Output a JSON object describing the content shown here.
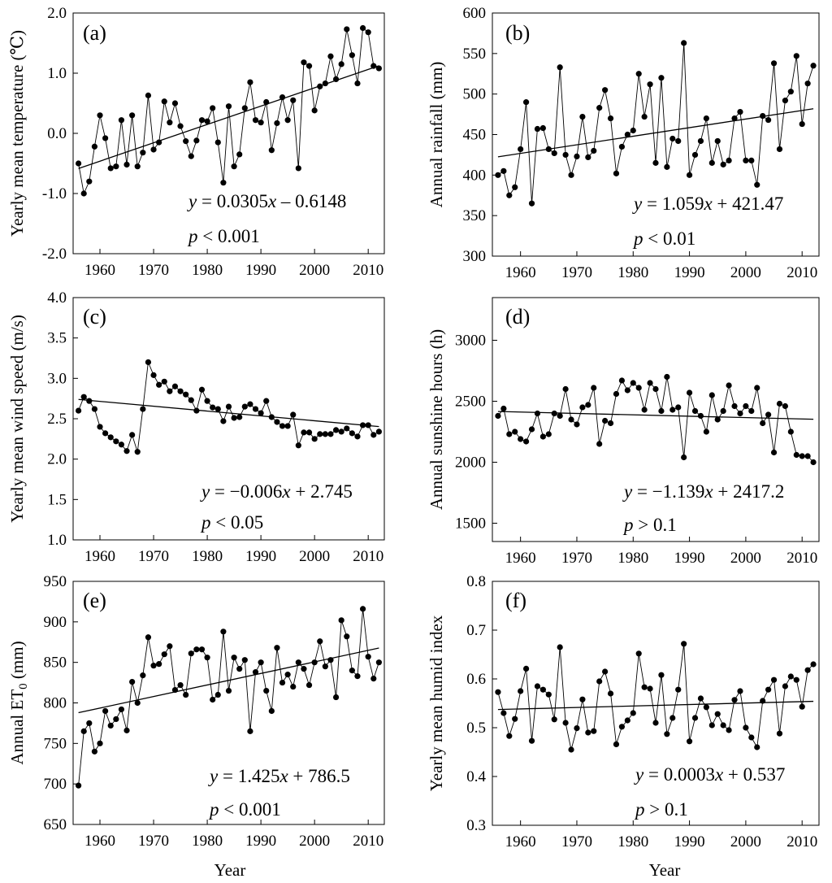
{
  "figure": {
    "xlabel": "Year"
  },
  "chart_data": [
    {
      "id": "a",
      "type": "line",
      "label": "(a)",
      "ylabel": "Yearly mean temperature (℃)",
      "xlim": [
        1955,
        2013
      ],
      "ylim": [
        -2.0,
        2.0
      ],
      "yticks": [
        "-2.0",
        "-1.0",
        "0.0",
        "1.0",
        "2.0"
      ],
      "xticks": [
        "1960",
        "1970",
        "1980",
        "1990",
        "2000",
        "2010"
      ],
      "years_start": 1956,
      "values": [
        -0.5,
        -1.0,
        -0.8,
        -0.22,
        0.3,
        -0.08,
        -0.58,
        -0.55,
        0.22,
        -0.52,
        0.3,
        -0.55,
        -0.32,
        0.63,
        -0.27,
        -0.15,
        0.53,
        0.18,
        0.5,
        0.12,
        -0.13,
        -0.38,
        -0.12,
        0.22,
        0.2,
        0.42,
        -0.15,
        -0.82,
        0.45,
        -0.55,
        -0.35,
        0.42,
        0.85,
        0.22,
        0.18,
        0.52,
        -0.28,
        0.17,
        0.6,
        0.22,
        0.55,
        -0.58,
        1.18,
        1.12,
        0.38,
        0.78,
        0.83,
        1.28,
        0.9,
        1.15,
        1.73,
        1.3,
        0.83,
        1.75,
        1.68,
        1.12,
        1.08
      ],
      "trend": {
        "slope": 0.0305,
        "intercept": -0.6148,
        "origin_year": 1956
      },
      "equation": {
        "prefix": "y",
        "body": " = 0.0305",
        "var": "x",
        "tail": " – 0.6148"
      },
      "pvalue": {
        "var": "p",
        "text": " < 0.001"
      }
    },
    {
      "id": "b",
      "type": "line",
      "label": "(b)",
      "ylabel": "Annual rainfall (mm)",
      "xlim": [
        1955,
        2013
      ],
      "ylim": [
        300,
        600
      ],
      "yticks": [
        "300",
        "350",
        "400",
        "450",
        "500",
        "550",
        "600"
      ],
      "xticks": [
        "1960",
        "1970",
        "1980",
        "1990",
        "2000",
        "2010"
      ],
      "years_start": 1956,
      "values": [
        400,
        405,
        375,
        385,
        432,
        490,
        365,
        457,
        458,
        432,
        427,
        533,
        425,
        400,
        423,
        472,
        422,
        430,
        483,
        505,
        470,
        402,
        435,
        450,
        455,
        525,
        472,
        512,
        415,
        520,
        410,
        445,
        442,
        563,
        400,
        425,
        442,
        470,
        415,
        442,
        413,
        418,
        470,
        478,
        418,
        418,
        388,
        473,
        468,
        538,
        432,
        492,
        503,
        547,
        463,
        513,
        535
      ],
      "trend": {
        "slope": 1.059,
        "intercept": 421.47,
        "origin_year": 1956
      },
      "equation": {
        "prefix": "y",
        "body": " = 1.059",
        "var": "x",
        "tail": " + 421.47"
      },
      "pvalue": {
        "var": "p",
        "text": " < 0.01"
      }
    },
    {
      "id": "c",
      "type": "line",
      "label": "(c)",
      "ylabel": "Yearly mean wind speed (m/s)",
      "xlim": [
        1955,
        2013
      ],
      "ylim": [
        1.0,
        4.0
      ],
      "yticks": [
        "1.0",
        "1.5",
        "2.0",
        "2.5",
        "3.0",
        "3.5",
        "4.0"
      ],
      "xticks": [
        "1960",
        "1970",
        "1980",
        "1990",
        "2000",
        "2010"
      ],
      "years_start": 1956,
      "values": [
        2.6,
        2.77,
        2.72,
        2.62,
        2.4,
        2.32,
        2.27,
        2.22,
        2.18,
        2.1,
        2.3,
        2.09,
        2.62,
        3.2,
        3.04,
        2.92,
        2.96,
        2.84,
        2.9,
        2.84,
        2.8,
        2.73,
        2.6,
        2.86,
        2.72,
        2.64,
        2.62,
        2.47,
        2.65,
        2.51,
        2.52,
        2.65,
        2.68,
        2.62,
        2.57,
        2.72,
        2.52,
        2.46,
        2.41,
        2.41,
        2.55,
        2.17,
        2.33,
        2.33,
        2.25,
        2.31,
        2.31,
        2.31,
        2.36,
        2.34,
        2.38,
        2.32,
        2.28,
        2.42,
        2.42,
        2.3,
        2.34
      ],
      "trend": {
        "slope": -0.006,
        "intercept": 2.745,
        "origin_year": 1956
      },
      "equation": {
        "prefix": "y",
        "body": " = −0.006",
        "var": "x",
        "tail": " + 2.745"
      },
      "pvalue": {
        "var": "p",
        "text": " < 0.05"
      }
    },
    {
      "id": "d",
      "type": "line",
      "label": "(d)",
      "ylabel": "Annual sunshine hours (h)",
      "xlim": [
        1955,
        2013
      ],
      "ylim": [
        1350,
        3350
      ],
      "yticks": [
        "1500",
        "2000",
        "2500",
        "3000"
      ],
      "ytick_values": [
        1500,
        2000,
        2500,
        3000
      ],
      "xticks": [
        "1960",
        "1970",
        "1980",
        "1990",
        "2000",
        "2010"
      ],
      "years_start": 1956,
      "values": [
        2380,
        2440,
        2230,
        2250,
        2190,
        2170,
        2270,
        2400,
        2210,
        2230,
        2400,
        2380,
        2600,
        2350,
        2310,
        2450,
        2470,
        2610,
        2150,
        2340,
        2320,
        2560,
        2670,
        2590,
        2650,
        2610,
        2430,
        2650,
        2600,
        2420,
        2700,
        2430,
        2450,
        2040,
        2570,
        2420,
        2380,
        2250,
        2550,
        2350,
        2420,
        2630,
        2460,
        2400,
        2460,
        2420,
        2610,
        2320,
        2390,
        2080,
        2480,
        2460,
        2250,
        2060,
        2050,
        2050,
        2000
      ],
      "trend": {
        "slope": -1.139,
        "intercept": 2417.2,
        "origin_year": 1956
      },
      "equation": {
        "prefix": "y",
        "body": " = −1.139",
        "var": "x",
        "tail": " + 2417.2"
      },
      "pvalue": {
        "var": "p",
        "text": " > 0.1"
      }
    },
    {
      "id": "e",
      "type": "line",
      "label": "(e)",
      "ylabel_main": "Annual ET",
      "ylabel_sub": "0",
      "ylabel_unit": " (mm)",
      "xlim": [
        1955,
        2013
      ],
      "ylim": [
        650,
        950
      ],
      "yticks": [
        "650",
        "700",
        "750",
        "800",
        "850",
        "900",
        "950"
      ],
      "xticks": [
        "1960",
        "1970",
        "1980",
        "1990",
        "2000",
        "2010"
      ],
      "years_start": 1956,
      "values": [
        698,
        765,
        775,
        740,
        750,
        790,
        772,
        780,
        792,
        766,
        826,
        800,
        834,
        881,
        846,
        848,
        860,
        870,
        816,
        822,
        810,
        861,
        866,
        866,
        856,
        804,
        810,
        888,
        815,
        856,
        842,
        853,
        765,
        838,
        850,
        815,
        790,
        868,
        825,
        835,
        820,
        850,
        842,
        822,
        850,
        876,
        845,
        853,
        807,
        902,
        882,
        840,
        833,
        916,
        857,
        830,
        850
      ],
      "trend": {
        "slope": 1.425,
        "intercept": 786.5,
        "origin_year": 1956
      },
      "equation": {
        "prefix": "y",
        "body": " = 1.425",
        "var": "x",
        "tail": " + 786.5"
      },
      "pvalue": {
        "var": "p",
        "text": " < 0.001"
      }
    },
    {
      "id": "f",
      "type": "line",
      "label": "(f)",
      "ylabel": "Yearly mean humid index",
      "xlim": [
        1955,
        2013
      ],
      "ylim": [
        0.3,
        0.8
      ],
      "yticks": [
        "0.3",
        "0.4",
        "0.5",
        "0.6",
        "0.7",
        "0.8"
      ],
      "xticks": [
        "1960",
        "1970",
        "1980",
        "1990",
        "2000",
        "2010"
      ],
      "years_start": 1956,
      "values": [
        0.573,
        0.53,
        0.483,
        0.518,
        0.575,
        0.621,
        0.473,
        0.585,
        0.578,
        0.568,
        0.517,
        0.665,
        0.51,
        0.455,
        0.499,
        0.558,
        0.49,
        0.493,
        0.595,
        0.615,
        0.57,
        0.466,
        0.502,
        0.515,
        0.53,
        0.652,
        0.583,
        0.58,
        0.51,
        0.608,
        0.487,
        0.52,
        0.578,
        0.672,
        0.472,
        0.52,
        0.56,
        0.542,
        0.505,
        0.528,
        0.505,
        0.495,
        0.557,
        0.575,
        0.5,
        0.48,
        0.46,
        0.555,
        0.578,
        0.598,
        0.488,
        0.585,
        0.605,
        0.598,
        0.543,
        0.618,
        0.63
      ],
      "trend": {
        "slope": 0.0003,
        "intercept": 0.537,
        "origin_year": 1956
      },
      "equation": {
        "prefix": "y",
        "body": " = 0.0003",
        "var": "x",
        "tail": " + 0.537"
      },
      "pvalue": {
        "var": "p",
        "text": " > 0.1"
      }
    }
  ]
}
